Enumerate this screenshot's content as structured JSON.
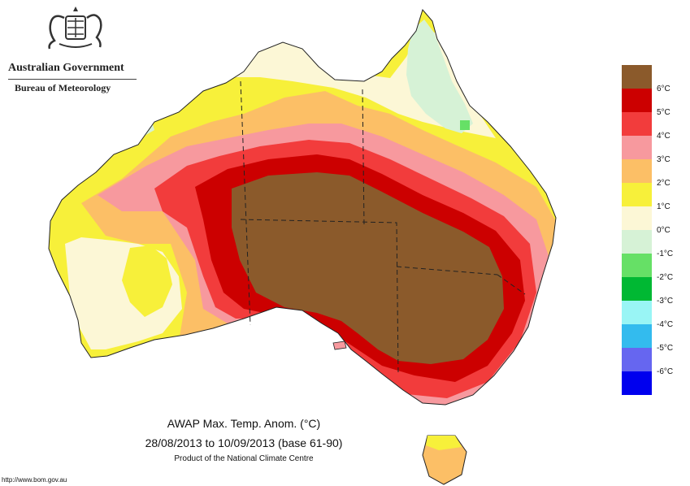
{
  "header": {
    "gov_name": "Australian Government",
    "bureau": "Bureau of Meteorology"
  },
  "map": {
    "title": "AWAP Max. Temp. Anom. (°C)",
    "period": "28/08/2013 to 10/09/2013 (base 61-90)",
    "product": "Product of the National Climate Centre"
  },
  "legend": {
    "bins": [
      {
        "color": "#8b5a2b",
        "label": "6°C"
      },
      {
        "color": "#cc0000",
        "label": "5°C"
      },
      {
        "color": "#f23c3c",
        "label": "4°C"
      },
      {
        "color": "#f7999e",
        "label": "3°C"
      },
      {
        "color": "#fcbf66",
        "label": "2°C"
      },
      {
        "color": "#f7f03a",
        "label": "1°C"
      },
      {
        "color": "#fcf7d6",
        "label": "0°C"
      },
      {
        "color": "#d6f2d6",
        "label": "-1°C"
      },
      {
        "color": "#66e066",
        "label": "-2°C"
      },
      {
        "color": "#00b833",
        "label": "-3°C"
      },
      {
        "color": "#99f5f5",
        "label": "-4°C"
      },
      {
        "color": "#33bbee",
        "label": "-5°C"
      },
      {
        "color": "#6666f0",
        "label": "-6°C"
      },
      {
        "color": "#0000ee",
        "label": ""
      }
    ]
  },
  "footer": {
    "url": "http://www.bom.gov.au"
  }
}
